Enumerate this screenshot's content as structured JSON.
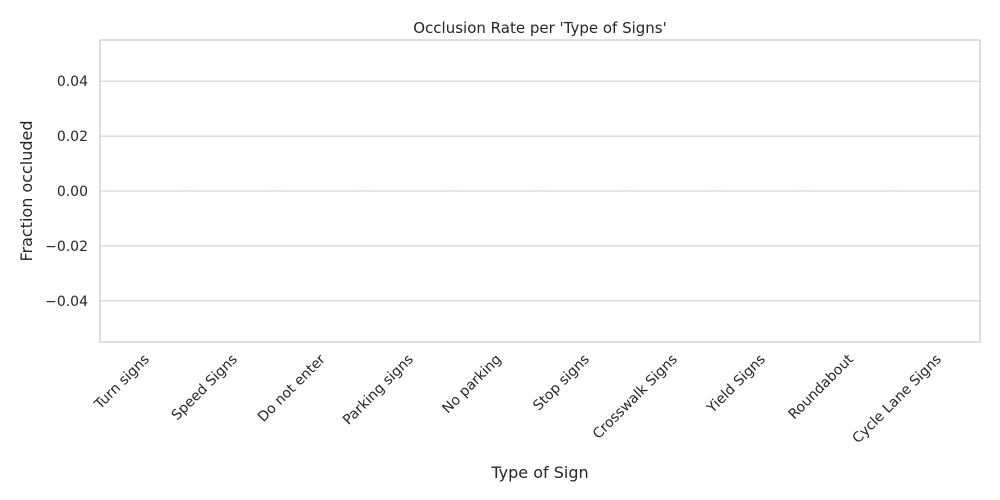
{
  "chart_data": {
    "type": "bar",
    "title": "Occlusion Rate per 'Type of Signs'",
    "xlabel": "Type of Sign",
    "ylabel": "Fraction occluded",
    "categories": [
      "Turn signs",
      "Speed Signs",
      "Do not enter",
      "Parking signs",
      "No parking",
      "Stop signs",
      "Crosswalk Signs",
      "Yield Signs",
      "Roundabout",
      "Cycle Lane Signs"
    ],
    "values": [
      0,
      0,
      0,
      0,
      0,
      0,
      0,
      0,
      0,
      0
    ],
    "ylim": [
      -0.055,
      0.055
    ],
    "yticks": [
      -0.04,
      -0.02,
      0.0,
      0.02,
      0.04
    ],
    "ytick_labels": [
      "−0.04",
      "−0.02",
      "0.00",
      "0.02",
      "0.04"
    ],
    "grid": true,
    "colors": {
      "grid": "#cccccc",
      "axes_edge": "#cccccc",
      "text": "#262626",
      "bar": "#cfcfcf"
    }
  }
}
